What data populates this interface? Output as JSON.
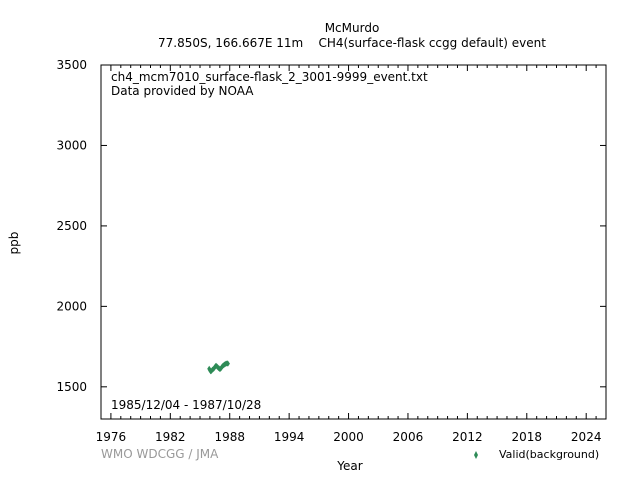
{
  "header": {
    "station": "McMurdo",
    "subtitle": "77.850S, 166.667E 11m    CH4(surface-flask ccgg default) event"
  },
  "credit": "WMO WDCGG / JMA",
  "chart_data": {
    "type": "scatter",
    "title": "McMurdo",
    "subtitle": "77.850S, 166.667E 11m    CH4(surface-flask ccgg default) event",
    "xlabel": "Year",
    "ylabel": "ppb",
    "xlim": [
      1975,
      2026
    ],
    "ylim": [
      1300,
      3500
    ],
    "xticks": [
      1976,
      1982,
      1988,
      1994,
      2000,
      2006,
      2012,
      2018,
      2024
    ],
    "yticks": [
      1500,
      2000,
      2500,
      3000,
      3500
    ],
    "annotations": {
      "file": "ch4_mcm7010_surface-flask_2_3001-9999_event.txt",
      "provider": "Data provided by NOAA",
      "period": "1985/12/04 - 1987/10/28"
    },
    "legend": {
      "placement": "bottom-right"
    },
    "series": [
      {
        "name": "Valid(background)",
        "color": "#2e8b57",
        "points": [
          [
            1985.93,
            1612
          ],
          [
            1985.98,
            1605
          ],
          [
            1986.05,
            1598
          ],
          [
            1986.1,
            1596
          ],
          [
            1986.18,
            1601
          ],
          [
            1986.25,
            1606
          ],
          [
            1986.33,
            1610
          ],
          [
            1986.4,
            1614
          ],
          [
            1986.48,
            1620
          ],
          [
            1986.55,
            1628
          ],
          [
            1986.62,
            1631
          ],
          [
            1986.7,
            1627
          ],
          [
            1986.78,
            1622
          ],
          [
            1986.85,
            1618
          ],
          [
            1986.92,
            1615
          ],
          [
            1987.0,
            1610
          ],
          [
            1987.08,
            1612
          ],
          [
            1987.15,
            1618
          ],
          [
            1987.22,
            1625
          ],
          [
            1987.3,
            1630
          ],
          [
            1987.38,
            1634
          ],
          [
            1987.45,
            1637
          ],
          [
            1987.52,
            1640
          ],
          [
            1987.6,
            1643
          ],
          [
            1987.68,
            1645
          ],
          [
            1987.75,
            1646
          ],
          [
            1987.82,
            1644
          ]
        ]
      }
    ]
  }
}
